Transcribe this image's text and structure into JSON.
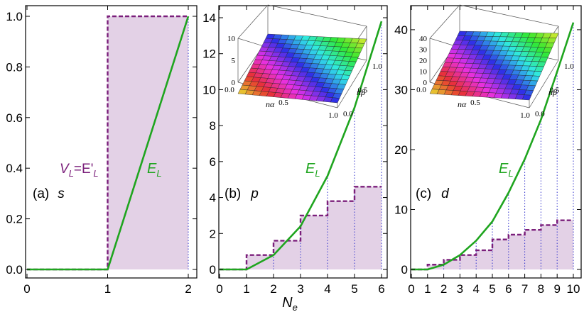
{
  "chart_data": [
    {
      "type": "line",
      "panel_label": "(a)",
      "orbital": "s",
      "xlim": [
        0,
        2
      ],
      "ylim": [
        0,
        1.0
      ],
      "xticks": [
        "0",
        "1",
        "2"
      ],
      "yticks": [
        "0.0",
        "0.2",
        "0.4",
        "0.6",
        "0.8",
        "1.0"
      ],
      "ytick_values": [
        0,
        0.2,
        0.4,
        0.6,
        0.8,
        1.0
      ],
      "series": [
        {
          "name": "E_L",
          "x": [
            0,
            1,
            2
          ],
          "y": [
            0,
            0,
            1.0
          ]
        },
        {
          "name": "V_L",
          "step_edges": [
            0,
            1,
            2
          ],
          "step_values": [
            0,
            1.0
          ]
        }
      ],
      "curve_label": "E",
      "curve_label_sub": "L",
      "vl_label_main": "V",
      "vl_label_sub": "L",
      "vl_label_eq": "=E'",
      "vl_label_sub2": "L"
    },
    {
      "type": "line",
      "panel_label": "(b)",
      "orbital": "p",
      "xlim": [
        0,
        6
      ],
      "ylim": [
        0,
        14
      ],
      "xticks": [
        "0",
        "1",
        "2",
        "3",
        "4",
        "5",
        "6"
      ],
      "yticks": [
        "0",
        "2",
        "4",
        "6",
        "8",
        "10",
        "12",
        "14"
      ],
      "ytick_values": [
        0,
        2,
        4,
        6,
        8,
        10,
        12,
        14
      ],
      "series": [
        {
          "name": "E_L",
          "x": [
            0,
            1,
            2,
            3,
            4,
            5,
            6
          ],
          "y": [
            0,
            0,
            0.8,
            2.4,
            5.2,
            9.0,
            13.8
          ]
        },
        {
          "name": "V_L",
          "step_edges": [
            0,
            1,
            2,
            3,
            4,
            5,
            6
          ],
          "step_values": [
            0,
            0.8,
            1.6,
            3.0,
            3.8,
            4.6
          ]
        }
      ],
      "curve_label": "E",
      "curve_label_sub": "L",
      "inset": {
        "zticks": [
          "0",
          "5",
          "10"
        ],
        "x_end_ticks": [
          "0.0",
          "0.5",
          "1.0"
        ],
        "y_end_ticks": [
          "0.0",
          "0.5",
          "1.0"
        ],
        "xlabel": "nα",
        "ylabel": "nβ"
      }
    },
    {
      "type": "line",
      "panel_label": "(c)",
      "orbital": "d",
      "xlim": [
        0,
        10
      ],
      "ylim": [
        0,
        42
      ],
      "xticks": [
        "0",
        "1",
        "2",
        "3",
        "4",
        "5",
        "6",
        "7",
        "8",
        "9",
        "10"
      ],
      "yticks": [
        "0",
        "10",
        "20",
        "30",
        "40"
      ],
      "ytick_values": [
        0,
        10,
        20,
        30,
        40
      ],
      "series": [
        {
          "name": "E_L",
          "x": [
            0,
            1,
            2,
            3,
            4,
            5,
            6,
            7,
            8,
            9,
            10
          ],
          "y": [
            0,
            0,
            0.8,
            2.4,
            4.8,
            8.0,
            12.8,
            18.4,
            25.0,
            33.0,
            41.2
          ]
        },
        {
          "name": "V_L",
          "step_edges": [
            0,
            1,
            2,
            3,
            4,
            5,
            6,
            7,
            8,
            9,
            10
          ],
          "step_values": [
            0,
            0.8,
            1.6,
            2.4,
            3.2,
            5.0,
            5.8,
            6.6,
            7.4,
            8.2
          ]
        }
      ],
      "curve_label": "E",
      "curve_label_sub": "L",
      "inset": {
        "zticks": [
          "0",
          "10",
          "20",
          "30",
          "40"
        ],
        "x_end_ticks": [
          "0.0",
          "0.5",
          "1.0"
        ],
        "y_end_ticks": [
          "0.0",
          "0.5",
          "1.0"
        ],
        "xlabel": "nα",
        "ylabel": "nβ"
      }
    }
  ],
  "xlabel_main": "N",
  "xlabel_sub": "e",
  "colors": {
    "fill": "#e3d1e6",
    "step": "#7b1f7b",
    "curve": "#1fa51f",
    "dotted": "#3333cc"
  }
}
